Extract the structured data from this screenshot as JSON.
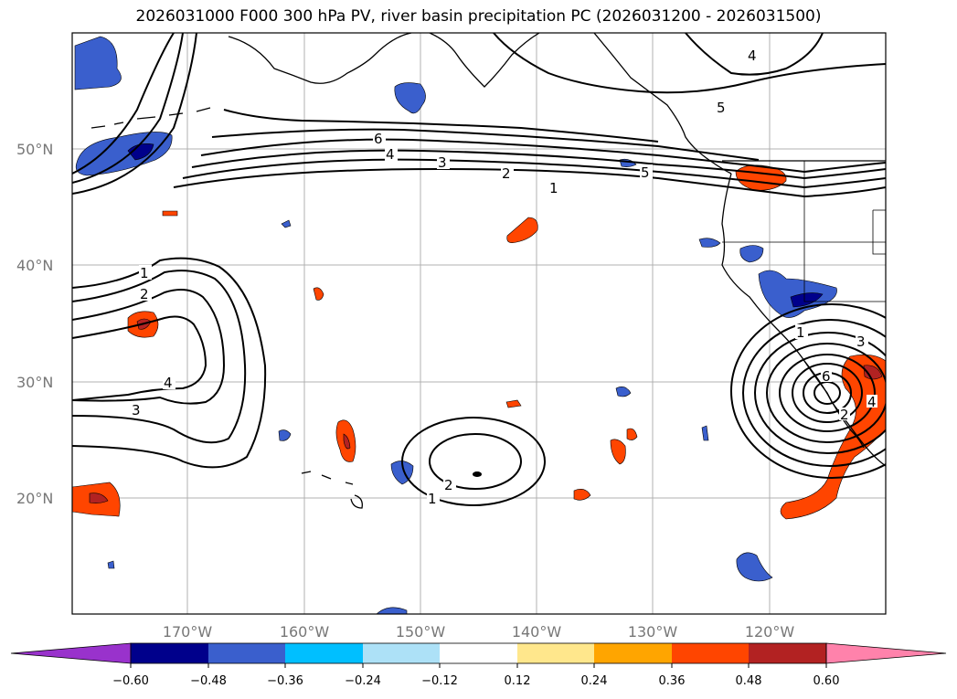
{
  "title": "2026031000 F000 300 hPa PV, river basin precipitation PC (2026031200 - 2026031500)",
  "lat_labels": [
    "50°N",
    "40°N",
    "30°N",
    "20°N"
  ],
  "lon_labels": [
    "170°W",
    "160°W",
    "150°W",
    "140°W",
    "130°W",
    "120°W"
  ],
  "contour_labels": [
    "1",
    "2",
    "3",
    "4",
    "5",
    "6"
  ],
  "colorbar": {
    "ticks": [
      "−0.60",
      "−0.48",
      "−0.36",
      "−0.24",
      "−0.12",
      "0.12",
      "0.24",
      "0.36",
      "0.48",
      "0.60"
    ],
    "colors": [
      "#9932CC",
      "#00008B",
      "#3A5FCD",
      "#00BFFF",
      "#ADE1F7",
      "#FFFFFF",
      "#FFE78C",
      "#FFA500",
      "#FF4500",
      "#B22222",
      "#FF82AB"
    ]
  },
  "map_colors": {
    "ocean": "#FFFFFF",
    "coast": "#000000",
    "grid": "#AAAAAA",
    "pv": "#000000"
  }
}
